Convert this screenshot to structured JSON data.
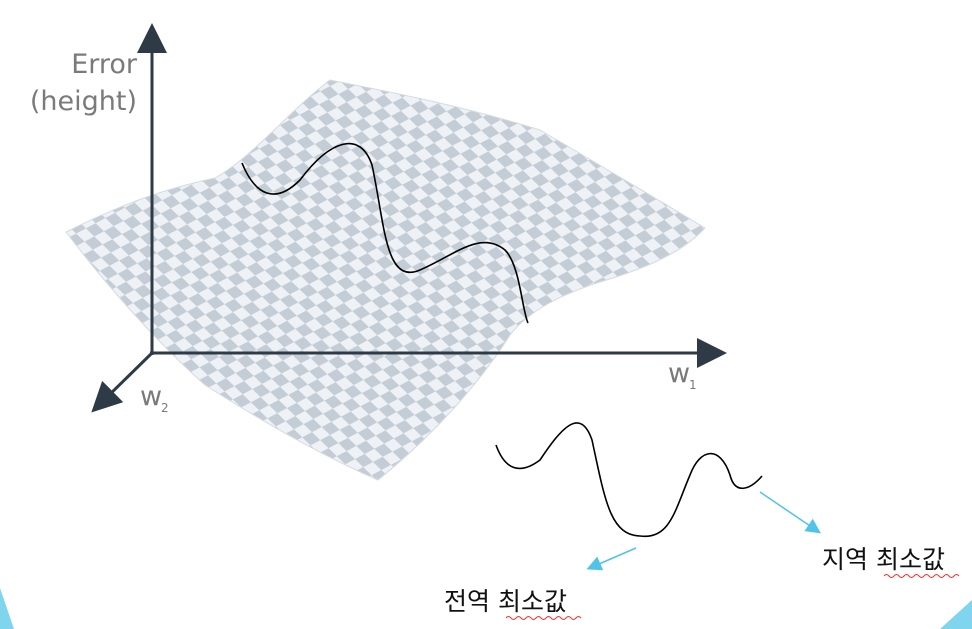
{
  "error_label_line1": "Error",
  "error_label_line2": "(height)",
  "w1_base": "w",
  "w1_sub": "1",
  "w2_base": "w",
  "w2_sub": "2",
  "global_min_label": "전역 최소값",
  "local_min_label": "지역 최소값",
  "colors": {
    "axis": "#2e3a46",
    "surface_light": "#eef1f5",
    "surface_dark": "#c4ccd6",
    "annotation_arrow": "#4fc3e8",
    "curve": "#000000",
    "spellcheck_underline": "#e53935"
  }
}
